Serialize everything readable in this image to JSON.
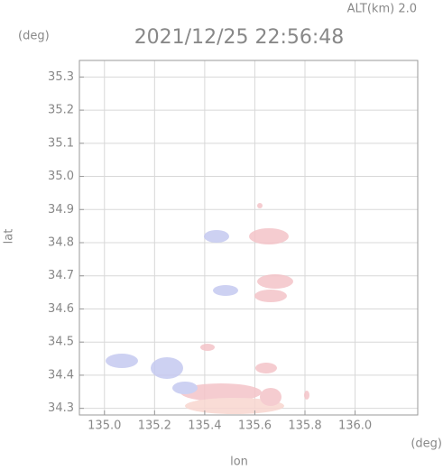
{
  "chart_data": {
    "type": "map",
    "title": "2021/12/25 22:56:48",
    "annotation": "ALT(km) 2.0",
    "y_unit": "(deg)",
    "x_unit": "(deg)",
    "xlabel": "lon",
    "ylabel": "lat",
    "xlim": [
      134.9,
      136.25
    ],
    "ylim": [
      34.28,
      35.35
    ],
    "xticks": [
      {
        "value": 135.0,
        "label": "135.0"
      },
      {
        "value": 135.2,
        "label": "135.2"
      },
      {
        "value": 135.4,
        "label": "135.4"
      },
      {
        "value": 135.6,
        "label": "135.6"
      },
      {
        "value": 135.8,
        "label": "135.8"
      },
      {
        "value": 136.0,
        "label": "136.0"
      }
    ],
    "yticks": [
      {
        "value": 34.3,
        "label": "34.3"
      },
      {
        "value": 34.4,
        "label": "34.4"
      },
      {
        "value": 34.5,
        "label": "34.5"
      },
      {
        "value": 34.6,
        "label": "34.6"
      },
      {
        "value": 34.7,
        "label": "34.7"
      },
      {
        "value": 34.8,
        "label": "34.8"
      },
      {
        "value": 34.9,
        "label": "34.9"
      },
      {
        "value": 35.0,
        "label": "35.0"
      },
      {
        "value": 35.1,
        "label": "35.1"
      },
      {
        "value": 35.2,
        "label": "35.2"
      },
      {
        "value": 35.3,
        "label": "35.3"
      }
    ],
    "grid": true
  }
}
